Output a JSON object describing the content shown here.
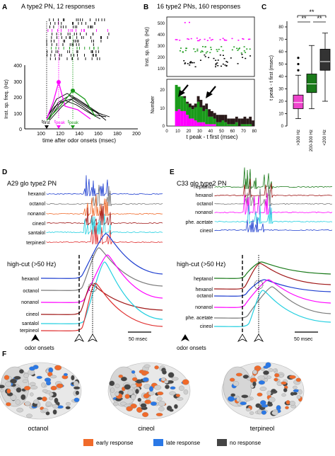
{
  "colors": {
    "magenta": "#ff00ff",
    "green": "#1a9a1a",
    "black": "#000000",
    "blue": "#1f3fd0",
    "darkred": "#a01818",
    "cyan": "#22cfe0",
    "gray": "#7a7a7a",
    "orange": "#f06a2a",
    "early": "#f06a2a",
    "late": "#2a78e6",
    "none": "#444444",
    "darkgreen": "#1a7a1a",
    "pink": "#ee44cc"
  },
  "panelA": {
    "letter": "A",
    "title": "A type2 PN, 12 responses",
    "ylabel": "Inst. sp. freq. (Hz)",
    "xlabel": "time after odor onsets (msec)",
    "ylim": [
      0,
      400
    ],
    "yticks": [
      "0",
      "100",
      "200",
      "300",
      "400"
    ],
    "xlim": [
      100,
      200
    ],
    "xticks": [
      "100",
      "120",
      "140",
      "160",
      "180",
      "200"
    ],
    "tfirst_main": "t",
    "tfirst_sub": "first",
    "tpeak_main": "t",
    "tpeak_sub": "peak",
    "tpeak2_main": "t",
    "tpeak2_sub": "peak"
  },
  "panelB": {
    "letter": "B",
    "title": "16 type2 PNs, 160 responses",
    "ylabel_top": "Inst. sp. freq. (Hz)",
    "ylabel_bottom": "Number",
    "xlabel": "t peak - t first (msec)",
    "top_yticks": [
      "100",
      "200",
      "300",
      "400",
      "500"
    ],
    "bottom_yticks": [
      "0",
      "10",
      "20"
    ],
    "xticks": [
      "0",
      "10",
      "20",
      "30",
      "40",
      "50",
      "60",
      "70",
      "80"
    ],
    "xlim": [
      0,
      80
    ]
  },
  "panelC": {
    "letter": "C",
    "ylabel": "t peak - t first (msec)",
    "yticks": [
      "0",
      "10",
      "20",
      "30",
      "40",
      "50",
      "60",
      "70",
      "80"
    ],
    "categories": [
      ">300 Hz",
      "200-300 Hz",
      "<200 Hz"
    ],
    "sig": [
      "**",
      "**",
      "**"
    ],
    "chart_data": {
      "type": "box",
      "categories": [
        ">300 Hz",
        "200-300 Hz",
        "<200 Hz"
      ],
      "ylim": [
        0,
        80
      ],
      "boxes": [
        {
          "min": 6,
          "q1": 14,
          "median": 19,
          "q3": 25,
          "max": 41,
          "outliers": [
            45,
            50,
            55
          ]
        },
        {
          "min": 14,
          "q1": 27,
          "median": 34,
          "q3": 42,
          "max": 65
        },
        {
          "min": 20,
          "q1": 45,
          "median": 52,
          "q3": 62,
          "max": 75
        }
      ]
    }
  },
  "panelD": {
    "letter": "D",
    "title": "A29 glo type2 PN",
    "odors": [
      "hexanol",
      "octanol",
      "nonanol",
      "cineol",
      "santalol",
      "terpineol"
    ],
    "highcut": "high-cut (>50 Hz)",
    "odors_lower": [
      "hexanol",
      "octanol",
      "nonanol",
      "cineol",
      "santalol",
      "terpineol"
    ],
    "scale": "50 msec",
    "onsets": "odor onsets"
  },
  "panelE": {
    "letter": "E",
    "title": "C33 glo type2 PN",
    "odors": [
      "heptanol",
      "hexanol",
      "octanol",
      "nonanol",
      "phe. acetate",
      "cineol"
    ],
    "highcut": "high-cut (>50 Hz)",
    "odors_lower": [
      "heptanol",
      "hexanol",
      "octanol",
      "nonanol",
      "phe. acetate",
      "cineol"
    ],
    "scale": "50 msec",
    "onsets": "odor onsets"
  },
  "panelF": {
    "letter": "F",
    "maps": [
      "octanol",
      "cineol",
      "terpineol"
    ],
    "legend": [
      "early response",
      "late response",
      "no response"
    ]
  }
}
